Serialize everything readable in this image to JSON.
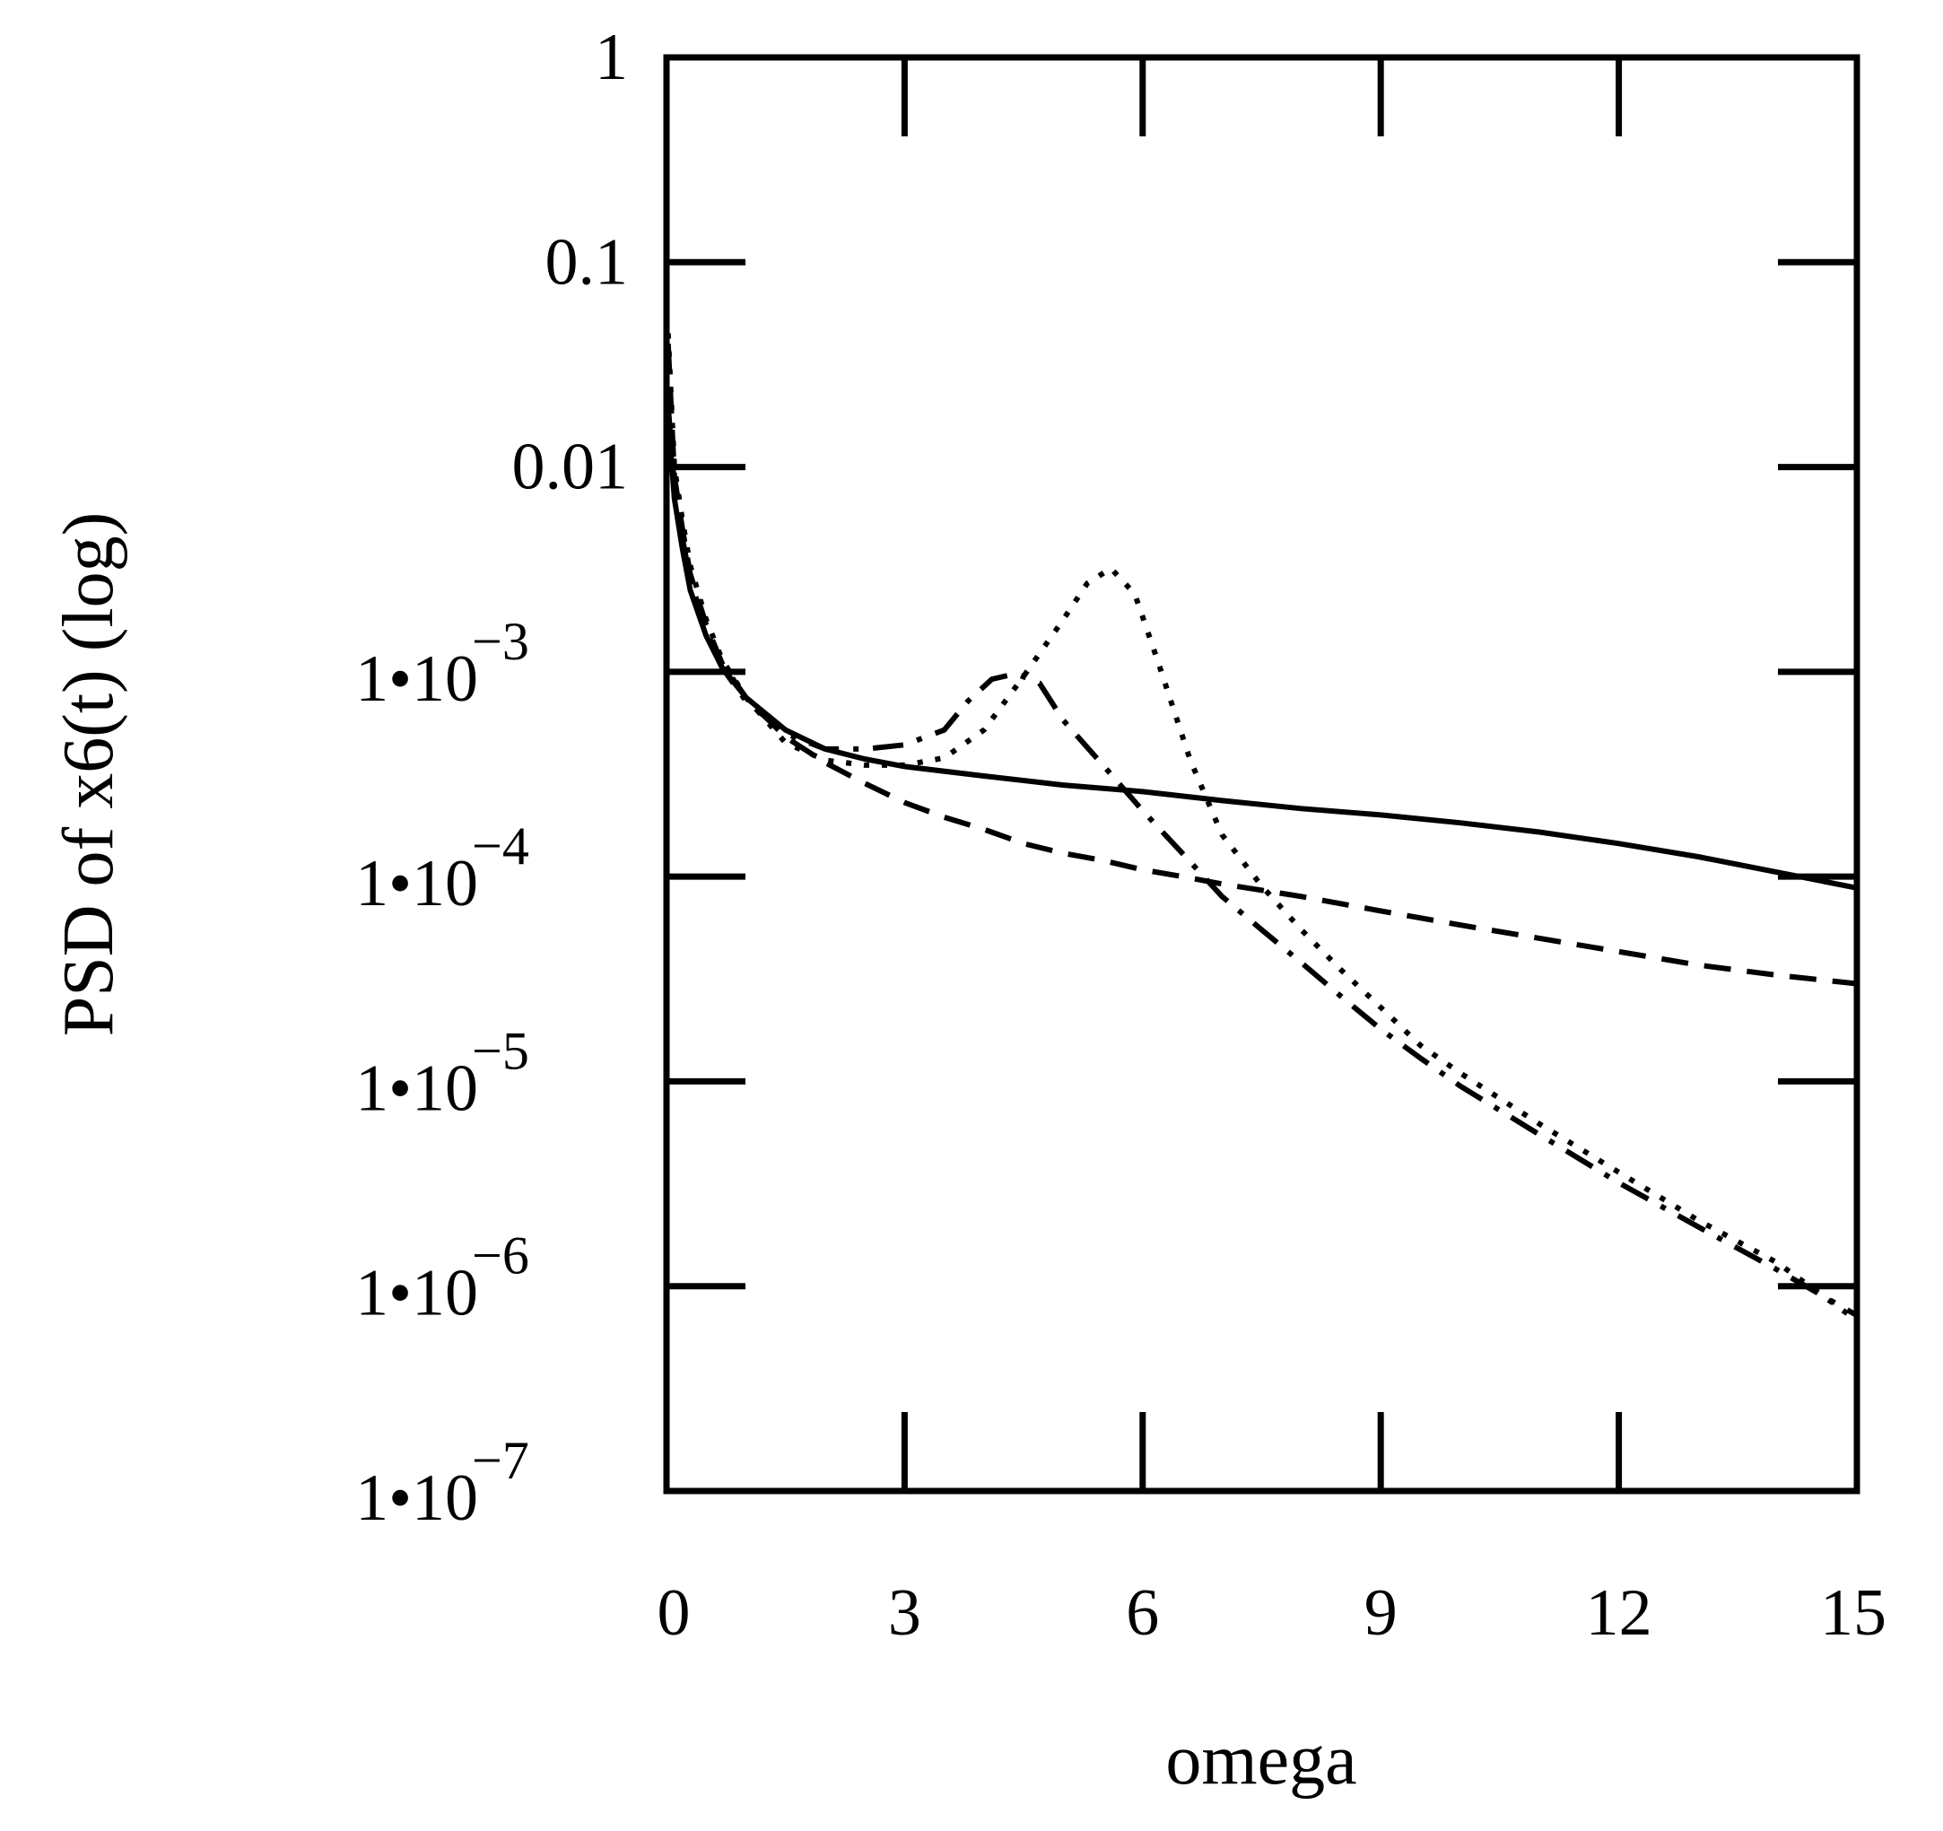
{
  "chart_data": {
    "type": "line",
    "title": "",
    "xlabel": "omega",
    "ylabel": "PSD of x6(t) (log)",
    "yscale": "log",
    "xlim": [
      0,
      15
    ],
    "ylim": [
      1e-07,
      1
    ],
    "grid": false,
    "x_ticks": [
      {
        "value": 0,
        "label": "0"
      },
      {
        "value": 3,
        "label": "3"
      },
      {
        "value": 6,
        "label": "6"
      },
      {
        "value": 9,
        "label": "9"
      },
      {
        "value": 12,
        "label": "12"
      },
      {
        "value": 15,
        "label": "15"
      }
    ],
    "y_ticks": [
      {
        "value": 1,
        "label": "1",
        "base": "",
        "exp": ""
      },
      {
        "value": 0.1,
        "label": "0.1",
        "base": "",
        "exp": ""
      },
      {
        "value": 0.01,
        "label": "0.01",
        "base": "",
        "exp": ""
      },
      {
        "value": 0.001,
        "label": "1•10−3",
        "base": "1•10",
        "exp": "−3"
      },
      {
        "value": 0.0001,
        "label": "1•10−4",
        "base": "1•10",
        "exp": "−4"
      },
      {
        "value": 1e-05,
        "label": "1•10−5",
        "base": "1•10",
        "exp": "−5"
      },
      {
        "value": 1e-06,
        "label": "1•10−6",
        "base": "1•10",
        "exp": "−6"
      },
      {
        "value": 1e-07,
        "label": "1•10−7",
        "base": "1•10",
        "exp": "−7"
      }
    ],
    "series": [
      {
        "name": "solid",
        "style": "solid",
        "x": [
          0.02,
          0.1,
          0.2,
          0.3,
          0.5,
          0.7,
          1.0,
          1.5,
          2.0,
          2.5,
          3.0,
          4.0,
          5.0,
          6.0,
          7.0,
          8.0,
          9.0,
          10.0,
          11.0,
          12.0,
          13.0,
          14.0,
          15.0
        ],
        "y": [
          0.018,
          0.007,
          0.004,
          0.0025,
          0.0015,
          0.00105,
          0.00075,
          0.00052,
          0.00042,
          0.000375,
          0.000345,
          0.00031,
          0.00028,
          0.00026,
          0.000235,
          0.000215,
          0.0002,
          0.000183,
          0.000165,
          0.000145,
          0.000125,
          0.000105,
          8.8e-05
        ]
      },
      {
        "name": "dashed",
        "style": "dashed",
        "x": [
          0.02,
          0.1,
          0.2,
          0.3,
          0.5,
          0.7,
          1.0,
          1.5,
          2.0,
          2.5,
          3.0,
          3.5,
          4.0,
          4.5,
          5.0,
          5.5,
          6.0,
          6.5,
          7.0,
          8.0,
          9.0,
          10.0,
          11.0,
          12.0,
          13.0,
          14.0,
          15.0
        ],
        "y": [
          0.04,
          0.009,
          0.005,
          0.003,
          0.0017,
          0.0011,
          0.00075,
          0.00048,
          0.00036,
          0.000285,
          0.00023,
          0.000195,
          0.00017,
          0.000145,
          0.00013,
          0.00012,
          0.000108,
          0.0001,
          9.2e-05,
          8e-05,
          6.8e-05,
          5.8e-05,
          5e-05,
          4.3e-05,
          3.7e-05,
          3.3e-05,
          3e-05
        ]
      },
      {
        "name": "dash-dot",
        "style": "dashdot",
        "x": [
          0.02,
          0.1,
          0.2,
          0.3,
          0.5,
          0.7,
          1.0,
          1.5,
          2.0,
          2.5,
          3.0,
          3.5,
          3.8,
          4.1,
          4.4,
          4.7,
          5.0,
          5.5,
          6.0,
          6.5,
          7.0,
          7.5,
          8.0,
          8.5,
          9.0,
          9.5,
          10.0,
          11.0,
          12.0,
          13.0,
          14.0,
          15.0
        ],
        "y": [
          0.02,
          0.008,
          0.0045,
          0.0028,
          0.0016,
          0.00105,
          0.00072,
          0.0005,
          0.00042,
          0.00042,
          0.00044,
          0.00052,
          0.00072,
          0.00092,
          0.00098,
          0.00088,
          0.00058,
          0.00035,
          0.00021,
          0.00013,
          8e-05,
          5.5e-05,
          3.8e-05,
          2.6e-05,
          1.8e-05,
          1.3e-05,
          9.5e-06,
          5.5e-06,
          3.2e-06,
          1.95e-06,
          1.2e-06,
          7.2e-07
        ]
      },
      {
        "name": "dotted",
        "style": "dotted",
        "x": [
          0.02,
          0.1,
          0.2,
          0.3,
          0.5,
          0.7,
          1.0,
          1.5,
          2.0,
          2.5,
          3.0,
          3.5,
          4.0,
          4.5,
          5.0,
          5.3,
          5.6,
          5.9,
          6.2,
          6.6,
          7.0,
          7.5,
          8.0,
          8.5,
          9.0,
          9.5,
          10.0,
          11.0,
          12.0,
          13.0,
          14.0,
          15.0
        ],
        "y": [
          0.045,
          0.01,
          0.0055,
          0.0033,
          0.0018,
          0.00115,
          0.00075,
          0.00045,
          0.00037,
          0.00035,
          0.00035,
          0.00038,
          0.00052,
          0.00095,
          0.0018,
          0.0027,
          0.0032,
          0.0024,
          0.0011,
          0.00037,
          0.00016,
          9e-05,
          5.5e-05,
          3.5e-05,
          2.3e-05,
          1.5e-05,
          1.1e-05,
          6.2e-06,
          3.6e-06,
          2.1e-06,
          1.3e-06,
          6.8e-07
        ]
      }
    ]
  }
}
